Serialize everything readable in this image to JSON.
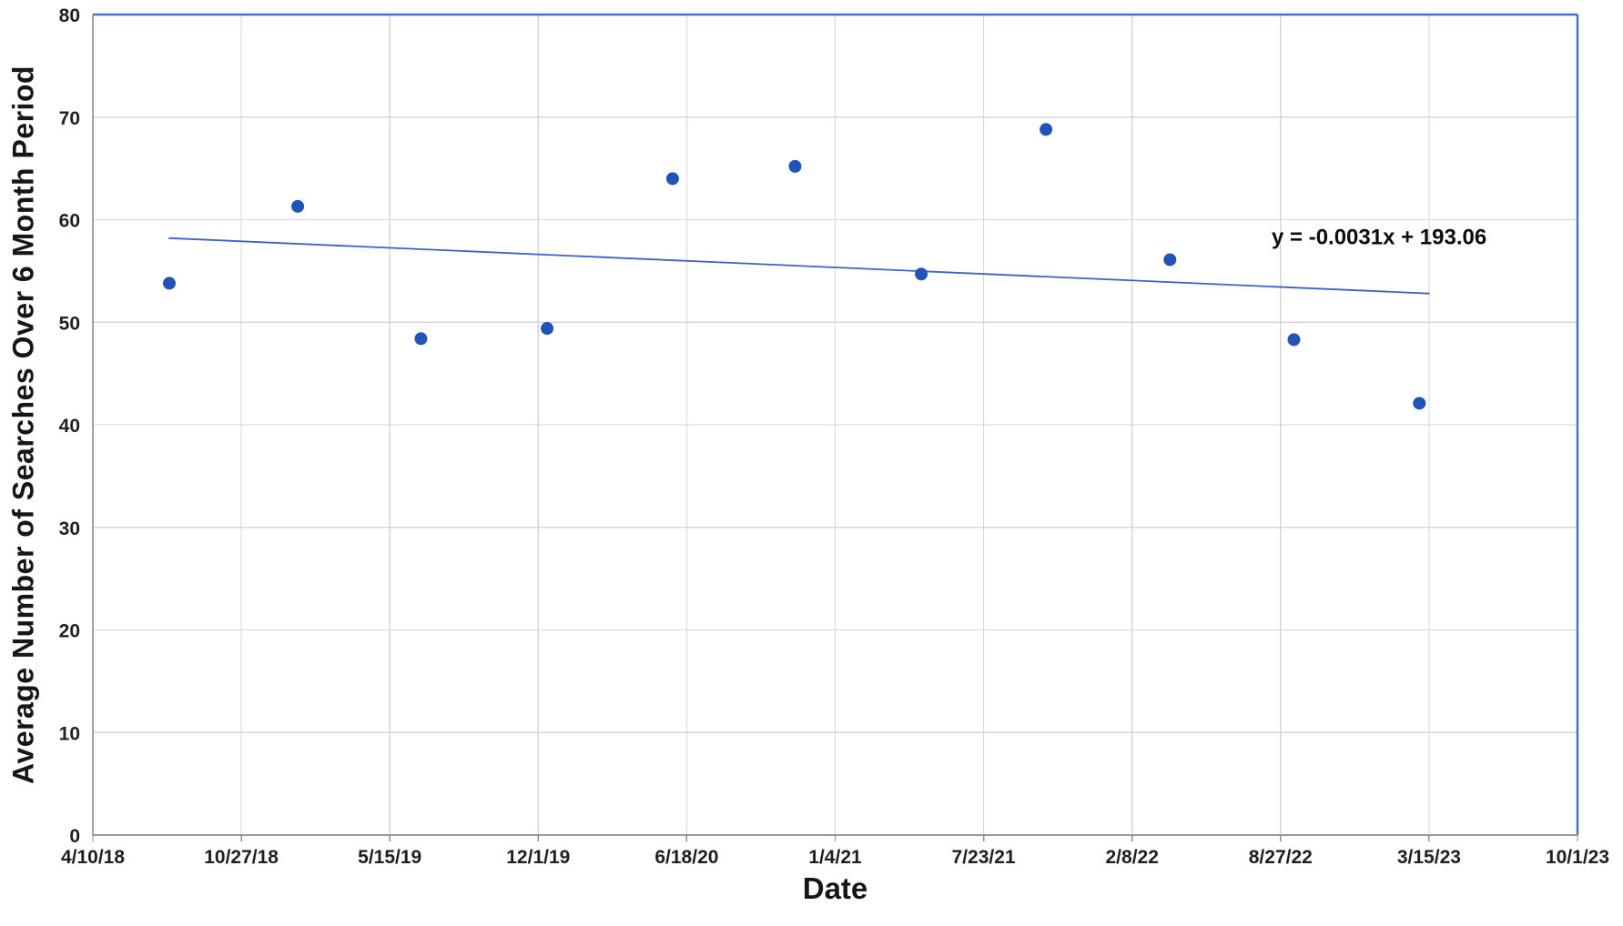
{
  "chart_data": {
    "type": "scatter",
    "title": "",
    "xlabel": "Date",
    "ylabel": "Average Number of Searches Over 6 Month Period",
    "x_axis": {
      "tick_labels": [
        "4/10/18",
        "10/27/18",
        "5/15/19",
        "12/1/19",
        "6/18/20",
        "1/4/21",
        "7/23/21",
        "2/8/22",
        "8/27/22",
        "3/15/23",
        "10/1/23"
      ],
      "tick_day_offsets": [
        0,
        200,
        400,
        600,
        800,
        1000,
        1200,
        1400,
        1600,
        1800,
        2000
      ],
      "domain_days": [
        0,
        2000
      ],
      "interval_days": 200
    },
    "y_axis": {
      "min": 0,
      "max": 80,
      "tick_step": 10,
      "tick_labels": [
        "0",
        "10",
        "20",
        "30",
        "40",
        "50",
        "60",
        "70",
        "80"
      ]
    },
    "grid": true,
    "legend": "none",
    "points": [
      {
        "date_est": "7/22/18",
        "day": 103,
        "value": 53.8
      },
      {
        "date_est": "1/11/19",
        "day": 276,
        "value": 61.3
      },
      {
        "date_est": "6/26/19",
        "day": 442,
        "value": 48.4
      },
      {
        "date_est": "12/13/19",
        "day": 612,
        "value": 49.4
      },
      {
        "date_est": "5/31/20",
        "day": 781,
        "value": 64.0
      },
      {
        "date_est": "11/12/20",
        "day": 946,
        "value": 65.2
      },
      {
        "date_est": "4/30/21",
        "day": 1116,
        "value": 54.7
      },
      {
        "date_est": "10/15/21",
        "day": 1284,
        "value": 68.8
      },
      {
        "date_est": "3/31/22",
        "day": 1451,
        "value": 56.1
      },
      {
        "date_est": "9/14/22",
        "day": 1618,
        "value": 48.3
      },
      {
        "date_est": "3/2/23",
        "day": 1787,
        "value": 42.1
      }
    ],
    "trendline": {
      "equation": "y = -0.0031x + 193.06",
      "start": {
        "day": 103,
        "value": 58.2
      },
      "end": {
        "day": 1800,
        "value": 52.8
      }
    },
    "equation_label_pos": {
      "day": 1588,
      "value": 58.3
    },
    "colors": {
      "point": "#2253b8",
      "trendline": "#3b63c4",
      "plot_border": "#4472c4",
      "axis": "#8c8c8c",
      "grid": "#d6d6d6",
      "tick_text": "#1f1f1f",
      "title_text": "#161616"
    },
    "marker_radius": 7
  }
}
